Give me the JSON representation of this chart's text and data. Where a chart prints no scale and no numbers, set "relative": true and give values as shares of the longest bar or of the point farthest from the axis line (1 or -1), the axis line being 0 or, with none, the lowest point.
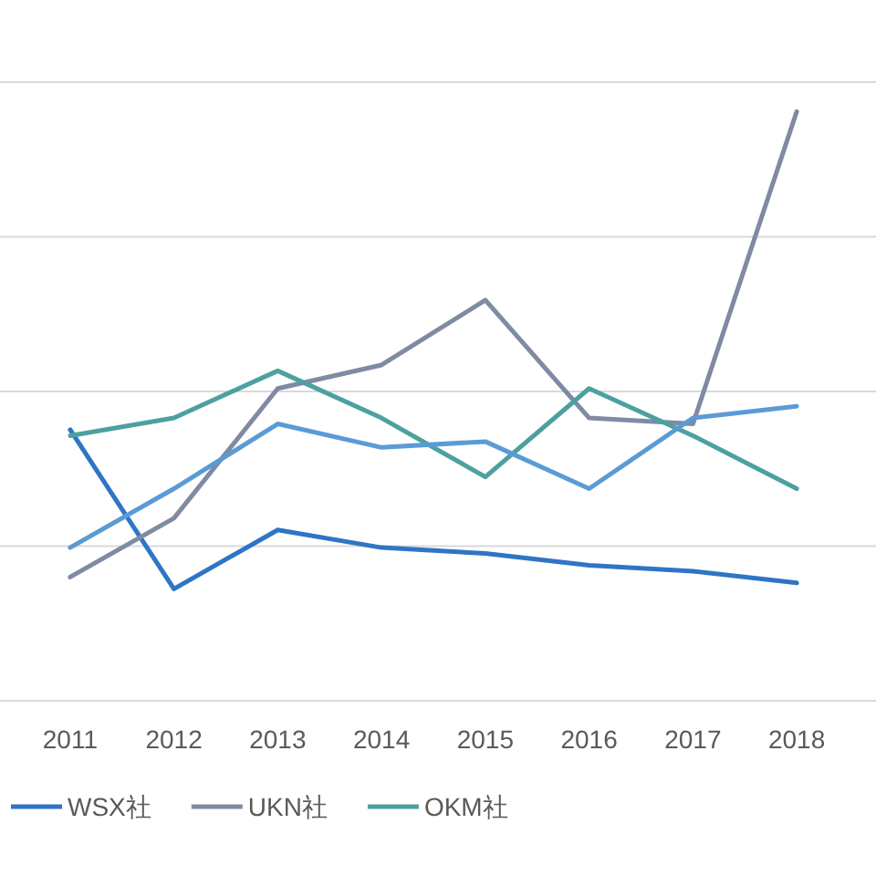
{
  "chart_data": {
    "type": "line",
    "relative": true,
    "grid": "y",
    "legend": "bottom",
    "line_style": "solid",
    "marker": "none",
    "categories": [
      "2011",
      "2012",
      "2013",
      "2014",
      "2015",
      "2016",
      "2017",
      "2018"
    ],
    "series": [
      {
        "name": "WSX社",
        "color": "#2e75c6",
        "values": [
          0.46,
          0.19,
          0.29,
          0.26,
          0.25,
          0.23,
          0.22,
          0.2
        ]
      },
      {
        "name": "UKN社",
        "color": "#7f8aa3",
        "values": [
          0.21,
          0.31,
          0.53,
          0.57,
          0.68,
          0.48,
          0.47,
          1
        ]
      },
      {
        "name": "OKM社",
        "color": "#4ea0a0",
        "values": [
          0.45,
          0.48,
          0.56,
          0.48,
          0.38,
          0.53,
          0.45,
          0.36
        ]
      },
      {
        "color": "#5b9bd5",
        "values": [
          0.26,
          0.36,
          0.47,
          0.43,
          0.44,
          0.36,
          0.48,
          0.5
        ]
      }
    ]
  }
}
